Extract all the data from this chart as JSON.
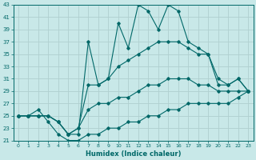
{
  "xlabel": "Humidex (Indice chaleur)",
  "background_color": "#c8e8e8",
  "grid_color": "#b0d0d0",
  "line_color": "#006868",
  "xlim": [
    -0.5,
    23.5
  ],
  "ylim": [
    21,
    43
  ],
  "xtick_labels": [
    "0",
    "1",
    "2",
    "3",
    "4",
    "5",
    "6",
    "7",
    "8",
    "9",
    "10",
    "11",
    "12",
    "13",
    "14",
    "15",
    "16",
    "17",
    "18",
    "19",
    "20",
    "21",
    "22",
    "23"
  ],
  "yticks": [
    21,
    23,
    25,
    27,
    29,
    31,
    33,
    35,
    37,
    39,
    41,
    43
  ],
  "series": {
    "max": [
      25,
      25,
      25,
      25,
      24,
      22,
      22,
      37,
      30,
      31,
      40,
      36,
      43,
      42,
      39,
      43,
      42,
      37,
      36,
      35,
      31,
      30,
      31,
      29
    ],
    "avg_high": [
      25,
      25,
      25,
      25,
      24,
      22,
      23,
      30,
      30,
      31,
      33,
      34,
      35,
      36,
      37,
      37,
      37,
      36,
      35,
      35,
      30,
      30,
      31,
      29
    ],
    "avg_low": [
      25,
      25,
      25,
      25,
      24,
      22,
      23,
      26,
      27,
      27,
      28,
      28,
      29,
      30,
      30,
      31,
      31,
      31,
      30,
      30,
      29,
      29,
      29,
      29
    ],
    "min": [
      25,
      25,
      26,
      24,
      22,
      21,
      21,
      22,
      22,
      23,
      23,
      24,
      24,
      25,
      25,
      26,
      26,
      27,
      27,
      27,
      27,
      27,
      28,
      29
    ]
  }
}
